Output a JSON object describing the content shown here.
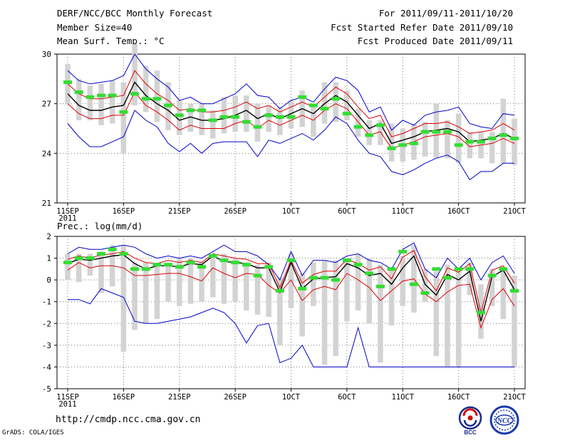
{
  "header": {
    "left": [
      "DERF/NCC/BCC Monthly Forecast",
      "Member Size=40",
      "Mean Surf. Temp.: °C"
    ],
    "right": [
      "For 2011/09/11-2011/10/20",
      "Fcst Started Refer Date 2011/09/10",
      "Fcst Produced Date 2011/09/11"
    ]
  },
  "footer": {
    "url": "http://cmdp.ncc.cma.gov.cn",
    "grads": "GrADS: COLA/IGES"
  },
  "logos": {
    "bcc": "BCC",
    "ncc": "NCC"
  },
  "colors": {
    "envelope": "#0000cc",
    "spread": "#dd0000",
    "mean": "#000000",
    "box": "#d3d3d3",
    "marker": "#33dd33"
  },
  "chart_data": [
    {
      "type": "line",
      "title": "Mean Surf. Temp.: °C",
      "ylim": [
        21,
        30
      ],
      "yticks": [
        21,
        24,
        27,
        30
      ],
      "xticks": [
        {
          "day": 1,
          "label": "11SEP",
          "sub": "2011"
        },
        {
          "day": 6,
          "label": "16SEP"
        },
        {
          "day": 11,
          "label": "21SEP"
        },
        {
          "day": 16,
          "label": "26SEP"
        },
        {
          "day": 21,
          "label": "1OCT"
        },
        {
          "day": 26,
          "label": "6OCT"
        },
        {
          "day": 31,
          "label": "11OCT"
        },
        {
          "day": 36,
          "label": "16OCT"
        },
        {
          "day": 41,
          "label": "21OCT"
        }
      ],
      "series": [
        {
          "name": "max",
          "role": "envelope",
          "values": [
            29.0,
            28.4,
            28.2,
            28.3,
            28.4,
            28.7,
            30.0,
            29.1,
            28.5,
            28.0,
            27.2,
            27.4,
            27.0,
            27.0,
            27.3,
            27.6,
            28.2,
            27.5,
            27.4,
            26.7,
            27.2,
            27.4,
            27.1,
            27.9,
            28.6,
            28.4,
            27.8,
            26.5,
            26.8,
            25.4,
            26.0,
            25.7,
            26.3,
            26.5,
            26.6,
            26.8,
            25.8,
            25.6,
            25.5,
            26.4,
            26.3
          ]
        },
        {
          "name": "spread_upper",
          "role": "spread",
          "values": [
            28.2,
            27.6,
            27.3,
            27.3,
            27.4,
            27.5,
            29.0,
            28.2,
            27.6,
            27.2,
            26.6,
            26.7,
            26.5,
            26.5,
            26.6,
            26.8,
            27.1,
            26.7,
            26.9,
            26.5,
            26.8,
            27.1,
            26.8,
            27.4,
            28.0,
            27.6,
            26.8,
            26.1,
            26.3,
            25.0,
            25.2,
            25.5,
            25.8,
            25.8,
            25.9,
            25.6,
            25.2,
            25.3,
            25.4,
            25.8,
            25.4
          ]
        },
        {
          "name": "ensemble_mean",
          "role": "mean",
          "values": [
            27.6,
            26.9,
            26.6,
            26.6,
            26.8,
            26.9,
            28.3,
            27.5,
            27.0,
            26.6,
            26.0,
            26.2,
            26.0,
            26.0,
            26.1,
            26.3,
            26.6,
            26.1,
            26.4,
            26.1,
            26.4,
            26.7,
            26.4,
            27.0,
            27.5,
            27.1,
            26.3,
            25.5,
            25.8,
            24.6,
            24.8,
            25.0,
            25.3,
            25.4,
            25.5,
            25.3,
            24.7,
            24.8,
            24.9,
            25.2,
            24.9
          ]
        },
        {
          "name": "spread_lower",
          "role": "spread",
          "values": [
            27.0,
            26.4,
            26.1,
            26.1,
            26.3,
            26.3,
            27.7,
            26.9,
            26.5,
            26.0,
            25.4,
            25.7,
            25.5,
            25.5,
            25.5,
            25.8,
            26.0,
            25.5,
            26.0,
            25.7,
            26.0,
            26.3,
            26.0,
            26.6,
            27.0,
            26.7,
            25.9,
            25.1,
            25.3,
            24.3,
            24.5,
            24.7,
            25.0,
            25.1,
            25.2,
            25.0,
            24.4,
            24.5,
            24.6,
            24.9,
            24.6
          ]
        },
        {
          "name": "min",
          "role": "envelope",
          "values": [
            25.8,
            25.0,
            24.4,
            24.4,
            24.7,
            25.0,
            26.6,
            26.0,
            25.6,
            24.6,
            24.1,
            24.6,
            24.0,
            24.6,
            24.7,
            24.7,
            24.7,
            23.8,
            24.8,
            24.6,
            24.9,
            25.2,
            24.8,
            25.4,
            26.2,
            25.8,
            24.8,
            24.0,
            23.8,
            22.9,
            22.7,
            23.0,
            23.4,
            23.7,
            23.9,
            23.5,
            22.4,
            22.9,
            22.9,
            23.4,
            23.4
          ]
        }
      ],
      "boxes": [
        [
          27.0,
          29.4
        ],
        [
          26.0,
          28.5
        ],
        [
          26.0,
          28.1
        ],
        [
          25.7,
          28.2
        ],
        [
          25.8,
          28.4
        ],
        [
          24.0,
          28.3
        ],
        [
          26.9,
          30.6
        ],
        [
          26.5,
          29.3
        ],
        [
          25.9,
          29.0
        ],
        [
          25.4,
          28.3
        ],
        [
          25.1,
          27.2
        ],
        [
          25.3,
          27.0
        ],
        [
          25.1,
          27.0
        ],
        [
          24.9,
          26.6
        ],
        [
          25.2,
          27.4
        ],
        [
          25.3,
          27.5
        ],
        [
          25.3,
          27.5
        ],
        [
          24.7,
          27.0
        ],
        [
          25.3,
          26.9
        ],
        [
          25.1,
          26.8
        ],
        [
          25.5,
          27.2
        ],
        [
          25.6,
          27.8
        ],
        [
          25.0,
          27.0
        ],
        [
          25.8,
          28.3
        ],
        [
          25.9,
          28.3
        ],
        [
          26.0,
          27.8
        ],
        [
          25.0,
          26.7
        ],
        [
          24.5,
          26.0
        ],
        [
          24.5,
          26.0
        ],
        [
          23.5,
          25.8
        ],
        [
          23.5,
          25.5
        ],
        [
          23.6,
          25.8
        ],
        [
          23.8,
          25.9
        ],
        [
          23.7,
          27.0
        ],
        [
          23.7,
          26.0
        ],
        [
          23.4,
          26.4
        ],
        [
          23.7,
          25.3
        ],
        [
          23.7,
          25.3
        ],
        [
          23.4,
          25.3
        ],
        [
          23.4,
          27.3
        ],
        [
          23.3,
          26.1
        ]
      ],
      "markers": [
        28.3,
        27.7,
        27.4,
        27.5,
        27.5,
        26.5,
        27.6,
        27.3,
        27.3,
        26.9,
        26.3,
        26.6,
        26.6,
        26.0,
        26.2,
        26.2,
        25.9,
        25.6,
        26.3,
        26.2,
        26.2,
        27.4,
        26.9,
        26.7,
        27.3,
        26.4,
        25.6,
        25.1,
        25.7,
        24.3,
        24.5,
        24.6,
        25.3,
        25.3,
        25.3,
        24.5,
        24.7,
        24.7,
        24.9,
        25.1,
        24.9
      ]
    },
    {
      "type": "line",
      "title": "Prec.: log(mm/d)",
      "ylim": [
        -5,
        2
      ],
      "yticks": [
        -5,
        -4,
        -3,
        -2,
        -1,
        0,
        1,
        2
      ],
      "xticks": [
        {
          "day": 1,
          "label": "11SEP",
          "sub": "2011"
        },
        {
          "day": 6,
          "label": "16SEP"
        },
        {
          "day": 11,
          "label": "21SEP"
        },
        {
          "day": 16,
          "label": "26SEP"
        },
        {
          "day": 21,
          "label": "1OCT"
        },
        {
          "day": 26,
          "label": "6OCT"
        },
        {
          "day": 31,
          "label": "11OCT"
        },
        {
          "day": 36,
          "label": "16OCT"
        },
        {
          "day": 41,
          "label": "21OCT"
        }
      ],
      "series": [
        {
          "name": "max",
          "role": "envelope",
          "values": [
            1.2,
            1.5,
            1.4,
            1.4,
            1.5,
            1.6,
            1.5,
            1.2,
            1.0,
            1.1,
            1.0,
            1.1,
            1.0,
            1.3,
            1.6,
            1.3,
            1.3,
            1.1,
            0.7,
            0.0,
            1.3,
            0.2,
            0.9,
            0.9,
            0.8,
            1.1,
            1.2,
            0.9,
            0.8,
            0.5,
            1.4,
            1.7,
            0.5,
            0.1,
            1.0,
            0.5,
            1.0,
            0.0,
            0.8,
            1.1,
            0.3
          ]
        },
        {
          "name": "spread_upper",
          "role": "spread",
          "values": [
            0.95,
            1.1,
            1.0,
            1.15,
            1.2,
            1.3,
            1.0,
            0.8,
            0.75,
            0.9,
            0.8,
            0.9,
            0.8,
            1.2,
            1.1,
            1.0,
            0.95,
            0.75,
            0.75,
            -0.35,
            0.9,
            -0.15,
            0.25,
            0.4,
            0.4,
            0.95,
            0.75,
            0.45,
            0.6,
            0.05,
            1.05,
            1.35,
            0.15,
            -0.5,
            0.55,
            0.35,
            0.75,
            -1.5,
            0.45,
            0.65,
            -0.15
          ]
        },
        {
          "name": "ensemble_mean",
          "role": "mean",
          "values": [
            0.75,
            0.95,
            0.9,
            1.0,
            1.1,
            1.15,
            0.75,
            0.5,
            0.65,
            0.65,
            0.6,
            0.75,
            0.7,
            1.1,
            0.85,
            0.8,
            0.75,
            0.55,
            0.55,
            -0.55,
            0.8,
            -0.4,
            0.05,
            0.1,
            0.15,
            0.75,
            0.55,
            0.2,
            0.3,
            -0.2,
            0.55,
            1.1,
            -0.2,
            -0.7,
            0.25,
            0.0,
            0.4,
            -1.9,
            0.15,
            0.45,
            -0.45
          ]
        },
        {
          "name": "spread_lower",
          "role": "spread",
          "values": [
            0.45,
            0.8,
            0.55,
            0.65,
            0.65,
            0.55,
            0.2,
            0.2,
            0.25,
            0.3,
            0.3,
            0.15,
            -0.05,
            0.55,
            0.3,
            0.1,
            0.3,
            0.25,
            -0.25,
            -0.6,
            0.0,
            -0.95,
            -0.45,
            -0.3,
            -0.45,
            0.3,
            0.0,
            -0.35,
            -0.95,
            -0.5,
            -0.05,
            0.05,
            -0.65,
            -1.0,
            -0.55,
            -0.25,
            -0.2,
            -2.2,
            -0.9,
            -0.4,
            -1.2
          ]
        },
        {
          "name": "min",
          "role": "envelope",
          "values": [
            -0.9,
            -0.9,
            -1.1,
            -0.4,
            -0.6,
            -0.8,
            -1.9,
            -2.0,
            -2.0,
            -1.9,
            -1.8,
            -1.7,
            -1.5,
            -1.3,
            -1.5,
            -2.0,
            -2.9,
            -2.1,
            -2.0,
            -3.8,
            -3.6,
            -3.0,
            -4.0,
            -4.0,
            -4.0,
            -4.0,
            -2.2,
            -4.0,
            -4.0,
            -4.0,
            -4.0,
            -4.0,
            -4.0,
            -4.0,
            -4.0,
            -4.0,
            -4.0,
            -4.0,
            -4.0,
            -4.0,
            -4.0
          ]
        }
      ],
      "boxes": [
        [
          0.0,
          1.2
        ],
        [
          -0.1,
          1.2
        ],
        [
          0.2,
          1.2
        ],
        [
          -0.6,
          1.3
        ],
        [
          -0.3,
          1.6
        ],
        [
          -3.3,
          1.6
        ],
        [
          -2.3,
          0.8
        ],
        [
          -2.0,
          0.8
        ],
        [
          -1.8,
          0.8
        ],
        [
          -1.0,
          0.7
        ],
        [
          -1.2,
          1.0
        ],
        [
          -1.1,
          1.0
        ],
        [
          -1.0,
          0.8
        ],
        [
          -0.8,
          1.1
        ],
        [
          -1.1,
          1.2
        ],
        [
          -1.0,
          1.0
        ],
        [
          -1.4,
          0.8
        ],
        [
          -1.6,
          0.7
        ],
        [
          -1.7,
          0.8
        ],
        [
          -3.0,
          0.1
        ],
        [
          -1.3,
          1.2
        ],
        [
          -2.6,
          0.3
        ],
        [
          -1.2,
          0.8
        ],
        [
          -3.9,
          0.9
        ],
        [
          -3.5,
          0.9
        ],
        [
          -1.9,
          1.0
        ],
        [
          -1.4,
          1.2
        ],
        [
          -2.0,
          1.0
        ],
        [
          -3.8,
          0.7
        ],
        [
          -2.1,
          0.6
        ],
        [
          -1.2,
          1.1
        ],
        [
          -1.5,
          1.6
        ],
        [
          -1.0,
          0.5
        ],
        [
          -3.5,
          0.4
        ],
        [
          -4.0,
          0.7
        ],
        [
          -4.0,
          0.5
        ],
        [
          -0.7,
          0.8
        ],
        [
          -2.7,
          -0.2
        ],
        [
          -1.2,
          0.5
        ],
        [
          -1.8,
          0.5
        ],
        [
          -4.0,
          0.2
        ]
      ],
      "markers": [
        0.8,
        1.0,
        1.0,
        1.2,
        1.4,
        1.2,
        0.5,
        0.5,
        0.7,
        0.7,
        0.6,
        0.8,
        0.6,
        1.1,
        0.9,
        0.8,
        0.7,
        0.2,
        0.6,
        -0.5,
        0.9,
        -0.4,
        0.1,
        0.1,
        0.0,
        0.9,
        0.7,
        0.3,
        -0.3,
        0.5,
        1.3,
        -0.2,
        -0.6,
        0.5,
        0.1,
        0.5,
        0.5,
        -1.5,
        0.2,
        0.5,
        -0.5
      ]
    }
  ]
}
